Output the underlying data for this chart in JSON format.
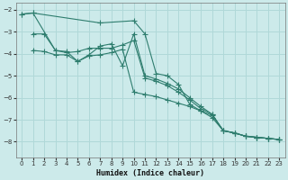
{
  "xlabel": "Humidex (Indice chaleur)",
  "bg_color": "#cceaea",
  "grid_color": "#b0d8d8",
  "line_color": "#2e7d6e",
  "marker": "+",
  "xlim": [
    -0.5,
    23.5
  ],
  "ylim": [
    -8.7,
    -1.7
  ],
  "yticks": [
    -8,
    -7,
    -6,
    -5,
    -4,
    -3,
    -2
  ],
  "xticks": [
    0,
    1,
    2,
    3,
    4,
    5,
    6,
    7,
    8,
    9,
    10,
    11,
    12,
    13,
    14,
    15,
    16,
    17,
    18,
    19,
    20,
    21,
    22,
    23
  ],
  "series1": [
    [
      0,
      -2.2
    ],
    [
      1,
      -2.15
    ],
    [
      7,
      -2.6
    ],
    [
      10,
      -2.5
    ],
    [
      11,
      -3.1
    ],
    [
      12,
      -4.9
    ],
    [
      13,
      -5.0
    ],
    [
      14,
      -5.4
    ],
    [
      15,
      -6.3
    ],
    [
      16,
      -6.6
    ],
    [
      17,
      -6.8
    ],
    [
      18,
      -7.5
    ],
    [
      19,
      -7.6
    ],
    [
      20,
      -7.75
    ],
    [
      21,
      -7.8
    ],
    [
      22,
      -7.85
    ],
    [
      23,
      -7.9
    ]
  ],
  "series2": [
    [
      1,
      -3.1
    ],
    [
      2,
      -3.1
    ],
    [
      3,
      -3.85
    ],
    [
      4,
      -3.95
    ],
    [
      5,
      -3.9
    ],
    [
      6,
      -3.75
    ],
    [
      7,
      -3.75
    ],
    [
      8,
      -3.75
    ],
    [
      9,
      -3.6
    ],
    [
      10,
      -3.4
    ],
    [
      11,
      -5.1
    ],
    [
      12,
      -5.25
    ],
    [
      13,
      -5.45
    ],
    [
      14,
      -5.75
    ],
    [
      15,
      -6.1
    ],
    [
      16,
      -6.5
    ],
    [
      17,
      -6.75
    ],
    [
      18,
      -7.5
    ],
    [
      19,
      -7.6
    ],
    [
      20,
      -7.75
    ],
    [
      21,
      -7.8
    ],
    [
      22,
      -7.85
    ],
    [
      23,
      -7.9
    ]
  ],
  "series3": [
    [
      1,
      -3.85
    ],
    [
      2,
      -3.9
    ],
    [
      3,
      -4.05
    ],
    [
      4,
      -4.05
    ],
    [
      5,
      -4.35
    ],
    [
      6,
      -4.1
    ],
    [
      7,
      -4.05
    ],
    [
      8,
      -3.95
    ],
    [
      9,
      -3.8
    ],
    [
      10,
      -5.75
    ],
    [
      11,
      -5.85
    ],
    [
      12,
      -5.95
    ],
    [
      13,
      -6.1
    ],
    [
      14,
      -6.25
    ],
    [
      15,
      -6.4
    ],
    [
      16,
      -6.6
    ],
    [
      17,
      -6.9
    ],
    [
      18,
      -7.5
    ],
    [
      19,
      -7.6
    ],
    [
      20,
      -7.75
    ],
    [
      21,
      -7.8
    ],
    [
      22,
      -7.85
    ],
    [
      23,
      -7.9
    ]
  ],
  "series4": [
    [
      0,
      -2.2
    ],
    [
      1,
      -2.15
    ],
    [
      3,
      -3.85
    ],
    [
      4,
      -3.9
    ],
    [
      5,
      -4.35
    ],
    [
      6,
      -4.05
    ],
    [
      7,
      -3.65
    ],
    [
      8,
      -3.55
    ],
    [
      9,
      -4.55
    ],
    [
      10,
      -3.1
    ],
    [
      11,
      -5.0
    ],
    [
      12,
      -5.15
    ],
    [
      13,
      -5.35
    ],
    [
      14,
      -5.6
    ],
    [
      15,
      -6.0
    ],
    [
      16,
      -6.4
    ],
    [
      17,
      -6.75
    ],
    [
      18,
      -7.5
    ],
    [
      19,
      -7.6
    ],
    [
      20,
      -7.75
    ],
    [
      21,
      -7.8
    ],
    [
      22,
      -7.85
    ],
    [
      23,
      -7.9
    ]
  ]
}
